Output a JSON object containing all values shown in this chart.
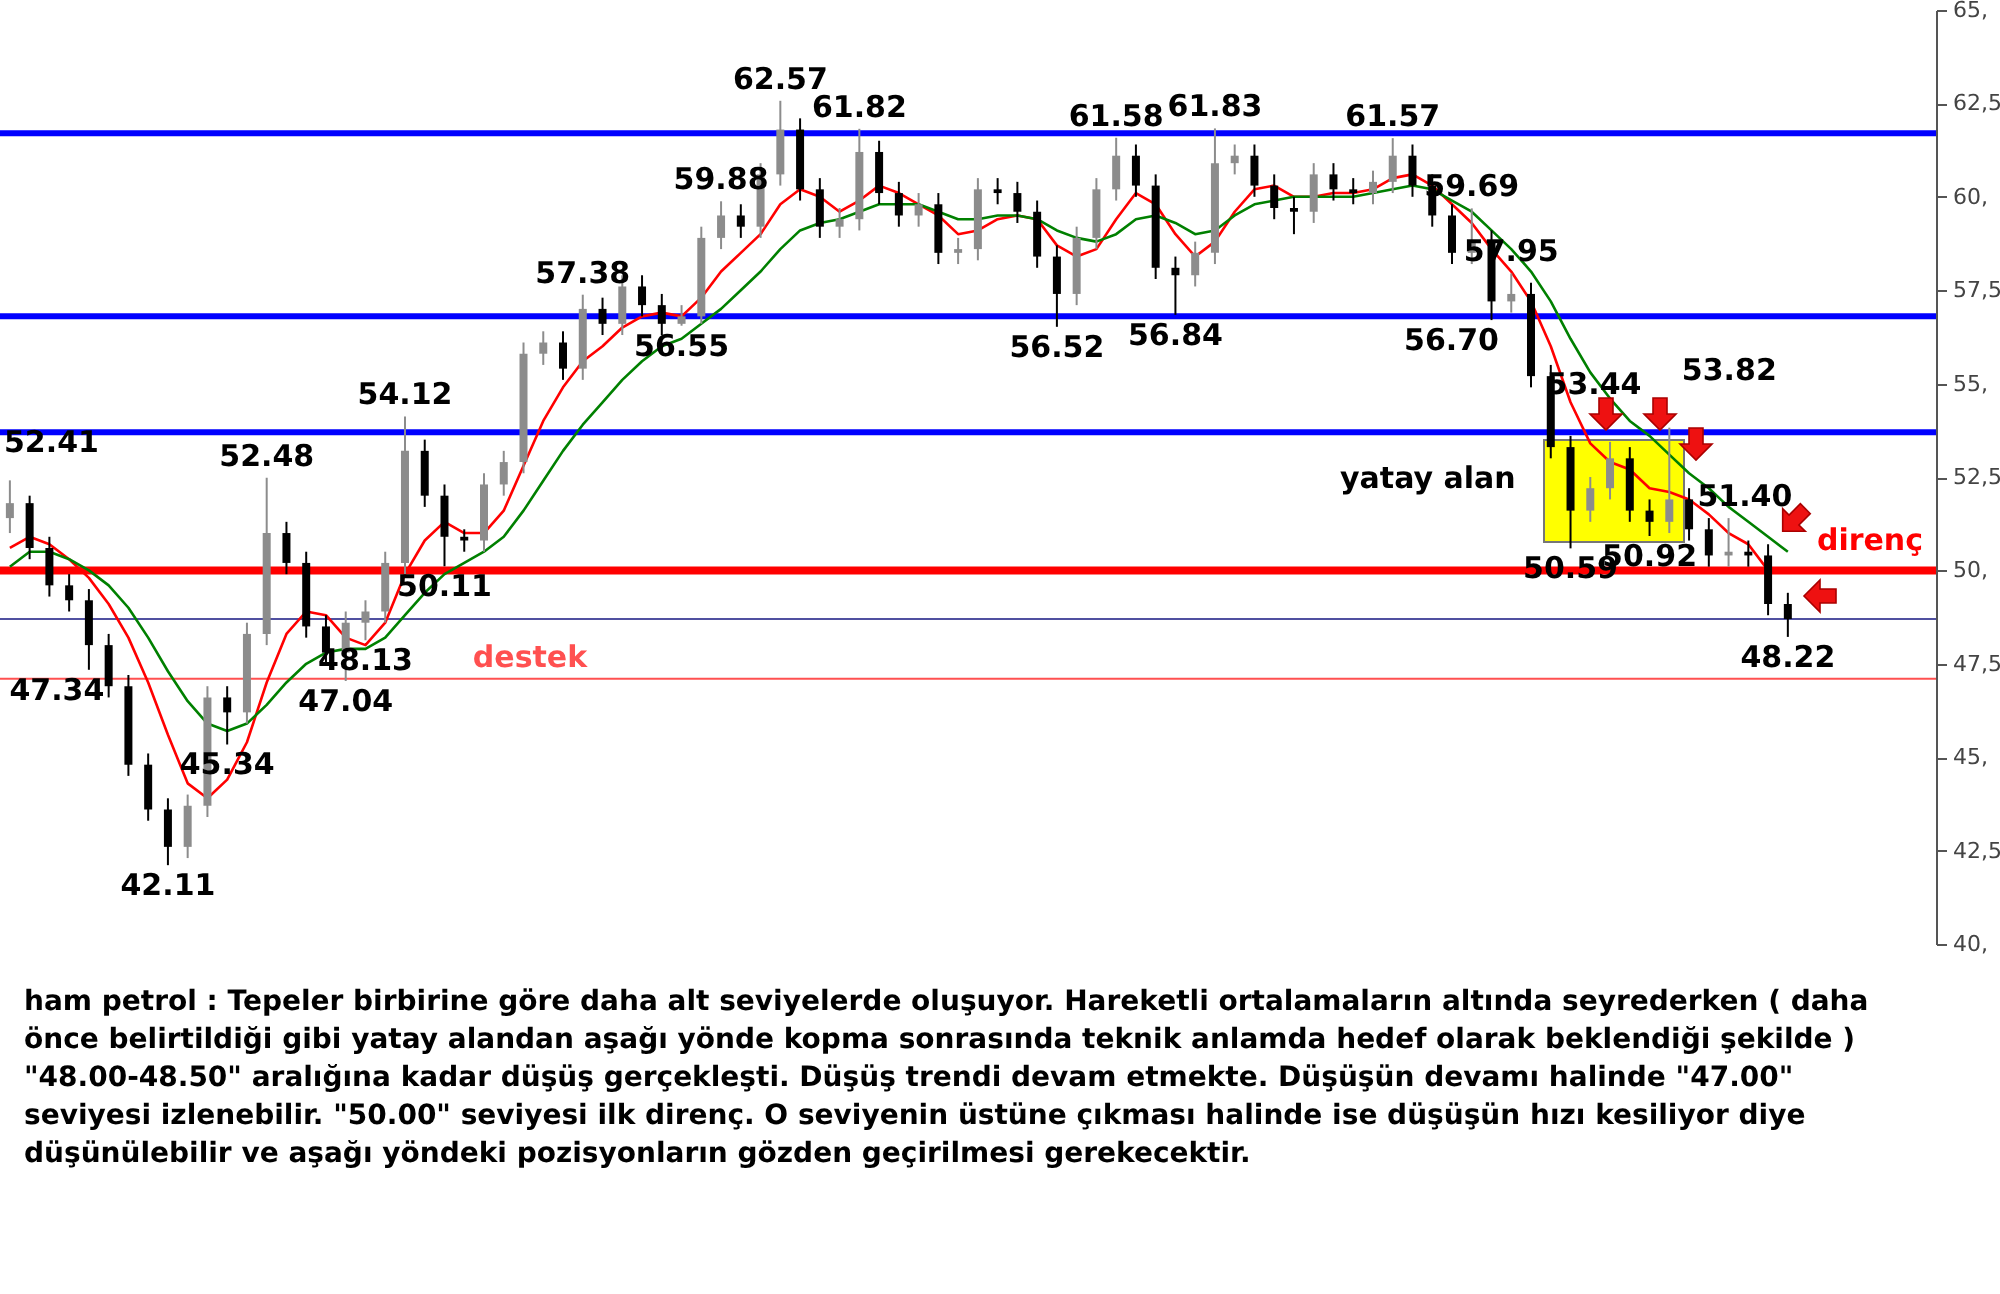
{
  "chart_data": {
    "type": "candlestick",
    "ylim": [
      40,
      65
    ],
    "yticks": [
      {
        "value": 40,
        "label": "40,"
      },
      {
        "value": 42.5,
        "label": "42,5"
      },
      {
        "value": 45,
        "label": "45,"
      },
      {
        "value": 47.5,
        "label": "47,5"
      },
      {
        "value": 50,
        "label": "50,"
      },
      {
        "value": 52.5,
        "label": "52,5"
      },
      {
        "value": 55,
        "label": "55,"
      },
      {
        "value": 57.5,
        "label": "57,5"
      },
      {
        "value": 60,
        "label": "60,"
      },
      {
        "value": 62.5,
        "label": "62,5"
      },
      {
        "value": 65,
        "label": "65,"
      }
    ],
    "tick_labels": "y",
    "colors": [
      "#8c8c8c",
      "#000000",
      "#000000",
      "#000000",
      "#000000",
      "#000000",
      "#000000",
      "#000000",
      "#000000",
      "#8c8c8c",
      "#8c8c8c",
      "#000000",
      "#8c8c8c",
      "#8c8c8c",
      "#000000",
      "#000000",
      "#000000",
      "#8c8c8c",
      "#8c8c8c",
      "#8c8c8c",
      "#8c8c8c",
      "#000000",
      "#000000",
      "#000000",
      "#8c8c8c",
      "#8c8c8c",
      "#8c8c8c",
      "#8c8c8c",
      "#000000",
      "#8c8c8c",
      "#000000",
      "#8c8c8c",
      "#000000",
      "#000000",
      "#8c8c8c",
      "#8c8c8c",
      "#8c8c8c",
      "#000000",
      "#8c8c8c",
      "#8c8c8c",
      "#000000",
      "#000000",
      "#8c8c8c",
      "#8c8c8c",
      "#000000",
      "#000000",
      "#8c8c8c",
      "#000000",
      "#8c8c8c",
      "#8c8c8c",
      "#000000",
      "#000000",
      "#000000",
      "#000000",
      "#8c8c8c",
      "#8c8c8c",
      "#8c8c8c",
      "#000000",
      "#000000",
      "#000000",
      "#8c8c8c",
      "#8c8c8c",
      "#8c8c8c",
      "#000000",
      "#000000",
      "#000000",
      "#8c8c8c",
      "#000000",
      "#000000",
      "#8c8c8c",
      "#8c8c8c",
      "#000000",
      "#000000",
      "#000000",
      "#8c8c8c",
      "#000000",
      "#8c8c8c",
      "#000000",
      "#000000",
      "#000000",
      "#8c8c8c",
      "#8c8c8c",
      "#000000",
      "#000000",
      "#8c8c8c",
      "#000000",
      "#000000",
      "#8c8c8c",
      "#000000",
      "#000000",
      "#000000",
      null,
      null,
      null,
      null,
      null,
      null,
      null
    ],
    "categories": [
      null,
      null,
      null,
      null,
      null,
      null,
      null,
      null,
      null,
      null,
      null,
      null,
      null,
      null,
      null,
      null,
      null,
      null,
      null,
      null,
      null,
      null,
      null,
      null,
      null,
      null,
      null,
      null,
      null,
      null,
      null,
      null,
      null,
      null,
      null,
      null,
      null,
      null,
      null,
      null,
      null,
      null,
      null,
      null,
      null,
      null,
      null,
      null,
      null,
      null,
      null,
      null,
      null,
      null,
      null,
      null,
      null,
      null,
      null,
      null,
      null,
      null,
      null,
      null,
      null,
      null,
      null,
      null,
      null,
      null,
      null,
      null,
      null,
      null,
      null,
      null,
      null,
      null,
      null,
      null,
      null,
      null,
      null,
      null,
      null,
      null,
      null,
      null,
      null,
      null,
      null,
      null,
      null,
      null,
      null,
      null,
      null,
      null
    ],
    "ohlc": [
      [
        51.4,
        52.41,
        51.0,
        51.8
      ],
      [
        51.8,
        52.0,
        50.3,
        50.6
      ],
      [
        50.6,
        50.9,
        49.3,
        49.6
      ],
      [
        49.6,
        49.9,
        48.9,
        49.2
      ],
      [
        49.2,
        49.5,
        47.34,
        48.0
      ],
      [
        48.0,
        48.3,
        46.6,
        46.9
      ],
      [
        46.9,
        47.2,
        44.5,
        44.8
      ],
      [
        44.8,
        45.1,
        43.3,
        43.6
      ],
      [
        43.6,
        43.9,
        42.11,
        42.6
      ],
      [
        42.6,
        44.0,
        42.3,
        43.7
      ],
      [
        43.7,
        46.9,
        43.4,
        46.6
      ],
      [
        46.6,
        46.9,
        45.34,
        46.2
      ],
      [
        46.2,
        48.6,
        45.9,
        48.3
      ],
      [
        48.3,
        52.48,
        48.0,
        51.0
      ],
      [
        51.0,
        51.3,
        49.9,
        50.2
      ],
      [
        50.2,
        50.5,
        48.2,
        48.5
      ],
      [
        48.5,
        48.8,
        47.5,
        47.8
      ],
      [
        47.8,
        48.9,
        47.04,
        48.6
      ],
      [
        48.6,
        49.2,
        48.13,
        48.9
      ],
      [
        48.9,
        50.5,
        48.6,
        50.2
      ],
      [
        50.2,
        54.12,
        49.9,
        53.2
      ],
      [
        53.2,
        53.5,
        51.7,
        52.0
      ],
      [
        52.0,
        52.3,
        50.11,
        50.9
      ],
      [
        50.9,
        51.1,
        50.5,
        50.8
      ],
      [
        50.8,
        52.6,
        50.5,
        52.3
      ],
      [
        52.3,
        53.2,
        52.0,
        52.9
      ],
      [
        52.9,
        56.1,
        52.6,
        55.8
      ],
      [
        55.8,
        56.4,
        55.5,
        56.1
      ],
      [
        56.1,
        56.4,
        55.1,
        55.4
      ],
      [
        55.4,
        57.38,
        55.1,
        57.0
      ],
      [
        57.0,
        57.3,
        56.3,
        56.6
      ],
      [
        56.6,
        57.9,
        56.3,
        57.6
      ],
      [
        57.6,
        57.9,
        56.8,
        57.1
      ],
      [
        57.1,
        57.4,
        56.3,
        56.6
      ],
      [
        56.6,
        57.1,
        56.55,
        56.8
      ],
      [
        56.8,
        59.2,
        56.6,
        58.9
      ],
      [
        58.9,
        59.88,
        58.6,
        59.5
      ],
      [
        59.5,
        59.8,
        58.9,
        59.2
      ],
      [
        59.2,
        60.9,
        58.9,
        60.6
      ],
      [
        60.6,
        62.57,
        60.3,
        61.8
      ],
      [
        61.8,
        62.1,
        59.9,
        60.2
      ],
      [
        60.2,
        60.5,
        58.9,
        59.2
      ],
      [
        59.2,
        59.7,
        58.9,
        59.4
      ],
      [
        59.4,
        61.82,
        59.1,
        61.2
      ],
      [
        61.2,
        61.5,
        59.8,
        60.1
      ],
      [
        60.1,
        60.4,
        59.2,
        59.5
      ],
      [
        59.5,
        60.1,
        59.2,
        59.8
      ],
      [
        59.8,
        60.1,
        58.2,
        58.5
      ],
      [
        58.5,
        58.9,
        58.2,
        58.6
      ],
      [
        58.6,
        60.5,
        58.3,
        60.2
      ],
      [
        60.2,
        60.5,
        59.8,
        60.1
      ],
      [
        60.1,
        60.4,
        59.3,
        59.6
      ],
      [
        59.6,
        59.9,
        58.1,
        58.4
      ],
      [
        58.4,
        58.7,
        56.52,
        57.4
      ],
      [
        57.4,
        59.2,
        57.1,
        58.9
      ],
      [
        58.9,
        60.5,
        58.6,
        60.2
      ],
      [
        60.2,
        61.58,
        59.9,
        61.1
      ],
      [
        61.1,
        61.4,
        60.0,
        60.3
      ],
      [
        60.3,
        60.6,
        57.8,
        58.1
      ],
      [
        58.1,
        58.4,
        56.84,
        57.9
      ],
      [
        57.9,
        58.8,
        57.6,
        58.5
      ],
      [
        58.5,
        61.83,
        58.2,
        60.9
      ],
      [
        60.9,
        61.4,
        60.6,
        61.1
      ],
      [
        61.1,
        61.4,
        60.0,
        60.3
      ],
      [
        60.3,
        60.6,
        59.4,
        59.7
      ],
      [
        59.7,
        60.0,
        59.0,
        59.6
      ],
      [
        59.6,
        60.9,
        59.3,
        60.6
      ],
      [
        60.6,
        60.9,
        59.9,
        60.2
      ],
      [
        60.2,
        60.5,
        59.8,
        60.1
      ],
      [
        60.1,
        60.7,
        59.8,
        60.4
      ],
      [
        60.4,
        61.57,
        60.1,
        61.1
      ],
      [
        61.1,
        61.4,
        60.0,
        60.3
      ],
      [
        60.3,
        60.6,
        59.2,
        59.5
      ],
      [
        59.5,
        59.8,
        58.2,
        58.5
      ],
      [
        58.5,
        59.69,
        58.2,
        58.8
      ],
      [
        58.8,
        59.1,
        56.7,
        57.2
      ],
      [
        57.2,
        57.95,
        56.9,
        57.4
      ],
      [
        57.4,
        57.7,
        54.9,
        55.2
      ],
      [
        55.2,
        55.5,
        53.0,
        53.3
      ],
      [
        53.3,
        53.6,
        50.59,
        51.6
      ],
      [
        51.6,
        52.5,
        51.3,
        52.2
      ],
      [
        52.2,
        53.44,
        51.9,
        53.0
      ],
      [
        53.0,
        53.3,
        51.3,
        51.6
      ],
      [
        51.6,
        51.9,
        50.92,
        51.3
      ],
      [
        51.3,
        53.82,
        51.0,
        51.9
      ],
      [
        51.9,
        52.2,
        50.8,
        51.1
      ],
      [
        51.1,
        51.4,
        50.1,
        50.4
      ],
      [
        50.4,
        51.4,
        50.1,
        50.5
      ],
      [
        50.5,
        50.8,
        50.1,
        50.4
      ],
      [
        50.4,
        50.7,
        48.8,
        49.1
      ],
      [
        49.1,
        49.4,
        48.22,
        48.7
      ],
      null,
      null,
      null,
      null,
      null,
      null,
      null
    ],
    "series": [
      {
        "type": "line",
        "color": "#ff0000",
        "values": [
          50.6,
          50.9,
          50.7,
          50.3,
          49.8,
          49.1,
          48.2,
          47.0,
          45.6,
          44.3,
          43.9,
          44.4,
          45.4,
          47.0,
          48.3,
          48.9,
          48.8,
          48.2,
          48.0,
          48.6,
          49.9,
          50.8,
          51.3,
          51.0,
          51.0,
          51.6,
          52.8,
          54.0,
          54.9,
          55.6,
          56.0,
          56.5,
          56.8,
          56.9,
          56.8,
          57.3,
          58.0,
          58.5,
          59.0,
          59.8,
          60.2,
          60.0,
          59.6,
          59.9,
          60.3,
          60.1,
          59.8,
          59.5,
          59.0,
          59.1,
          59.4,
          59.5,
          59.4,
          58.7,
          58.4,
          58.6,
          59.4,
          60.1,
          59.8,
          59.0,
          58.4,
          58.8,
          59.6,
          60.2,
          60.3,
          60.0,
          60.0,
          60.1,
          60.1,
          60.2,
          60.5,
          60.6,
          60.3,
          59.8,
          59.3,
          58.6,
          58.0,
          57.2,
          56.0,
          54.5,
          53.4,
          52.9,
          52.7,
          52.2,
          52.1,
          51.9,
          51.5,
          51.0,
          50.7,
          50.0,
          null,
          null,
          null,
          null,
          null,
          null,
          null,
          null
        ]
      },
      {
        "type": "line",
        "color": "#008000",
        "values": [
          50.1,
          50.5,
          50.5,
          50.3,
          50.0,
          49.6,
          49.0,
          48.2,
          47.3,
          46.5,
          45.9,
          45.7,
          45.9,
          46.4,
          47.0,
          47.5,
          47.8,
          47.9,
          47.9,
          48.2,
          48.8,
          49.4,
          49.9,
          50.2,
          50.5,
          50.9,
          51.6,
          52.4,
          53.2,
          53.9,
          54.5,
          55.1,
          55.6,
          56.0,
          56.2,
          56.6,
          57.0,
          57.5,
          58.0,
          58.6,
          59.1,
          59.3,
          59.4,
          59.6,
          59.8,
          59.8,
          59.8,
          59.6,
          59.4,
          59.4,
          59.5,
          59.5,
          59.4,
          59.1,
          58.9,
          58.8,
          59.0,
          59.4,
          59.5,
          59.3,
          59.0,
          59.1,
          59.5,
          59.8,
          59.9,
          60.0,
          60.0,
          60.0,
          60.0,
          60.1,
          60.2,
          60.3,
          60.2,
          59.9,
          59.6,
          59.1,
          58.6,
          58.0,
          57.2,
          56.2,
          55.3,
          54.6,
          54.0,
          53.6,
          53.1,
          52.6,
          52.2,
          51.7,
          51.3,
          50.9,
          50.5,
          null,
          null,
          null,
          null,
          null,
          null,
          null
        ]
      }
    ],
    "ref_lines": [
      {
        "axis": "y",
        "value": 61.7,
        "color": "#0000ff"
      },
      {
        "axis": "y",
        "value": 56.8,
        "color": "#0000ff"
      },
      {
        "axis": "y",
        "value": 53.7,
        "color": "#0000ff"
      },
      {
        "axis": "y",
        "value": 50.0,
        "color": "#ff0000",
        "label": "direnç"
      },
      {
        "axis": "y",
        "value": 47.1,
        "color": "#ff5050",
        "label": "destek"
      },
      {
        "axis": "y",
        "value": 48.7,
        "color": "#5050a0"
      }
    ],
    "annotations": [
      "52.41",
      {
        "text": "47.34",
        "y": 47.34
      },
      {
        "text": "42.11",
        "y": 42.11
      },
      {
        "text": "45.34",
        "y": 45.34
      },
      {
        "text": "52.48",
        "y": 52.48
      },
      {
        "text": "47.04",
        "y": 47.04
      },
      {
        "text": "48.13",
        "y": 48.13
      },
      {
        "text": "54.12",
        "y": 54.12
      },
      {
        "text": "50.11",
        "y": 50.11
      },
      {
        "text": "57.38",
        "y": 57.38
      },
      {
        "text": "56.55",
        "y": 56.55
      },
      {
        "text": "59.88",
        "y": 59.88
      },
      {
        "text": "62.57",
        "y": 62.57
      },
      {
        "text": "61.82",
        "y": 61.82
      },
      {
        "text": "56.52",
        "y": 56.52
      },
      {
        "text": "61.58",
        "y": 61.58
      },
      {
        "text": "56.84",
        "y": 56.84
      },
      {
        "text": "61.83",
        "y": 61.83
      },
      {
        "text": "61.57",
        "y": 61.57
      },
      {
        "text": "59.69",
        "y": 59.69
      },
      {
        "text": "56.70",
        "y": 56.7
      },
      {
        "text": "57.95",
        "y": 57.95
      },
      {
        "text": "53.44",
        "y": 53.44
      },
      {
        "text": "53.82",
        "y": 53.82
      },
      {
        "text": "50.59",
        "y": 50.59
      },
      {
        "text": "50.92",
        "y": 50.92
      },
      {
        "text": "51.40",
        "y": 51.4
      },
      {
        "text": "48.22",
        "y": 48.22
      },
      "yatay alan",
      "ham petrol : Tepeler birbirine göre daha alt seviyelerde oluşuyor. Hareketli ortalamaların altında seyrederken ( daha önce belirtildiği gibi yatay alandan aşağı yönde kopma sonrasında teknik anlamda hedef olarak beklendiği şekilde ) \"48.00-48.50\" aralığına kadar düşüş gerçekleşti. Düşüş trendi devam etmekte. Düşüşün devamı halinde \"47.00\" seviyesi izlenebilir. \"50.00\" seviyesi ilk direnç. O seviyenin üstüne çıkması halinde ise düşüşün hızı kesiliyor diye düşünülebilir ve aşağı yöndeki pozisyonların gözden geçirilmesi gerekecektir."
    ]
  }
}
